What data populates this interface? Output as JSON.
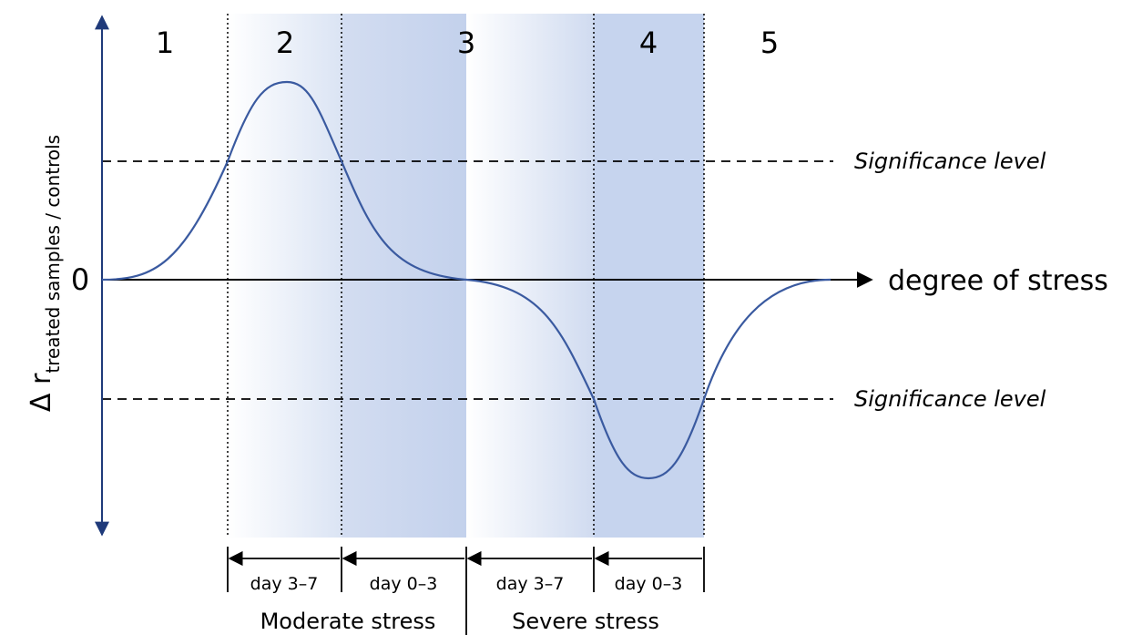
{
  "regions": [
    "1",
    "2",
    "3",
    "4",
    "5"
  ],
  "significance_labels": [
    "Significance level",
    "Significance level"
  ],
  "axis": {
    "origin": "0",
    "x_label": "degree of stress",
    "y_label": "Δ r",
    "y_label_subscript": "treated samples / controls"
  },
  "phases": [
    "day 3–7",
    "day 0–3",
    "day 3–7",
    "day 0–3"
  ],
  "stress_groups": [
    "Moderate stress",
    "Severe stress"
  ]
}
